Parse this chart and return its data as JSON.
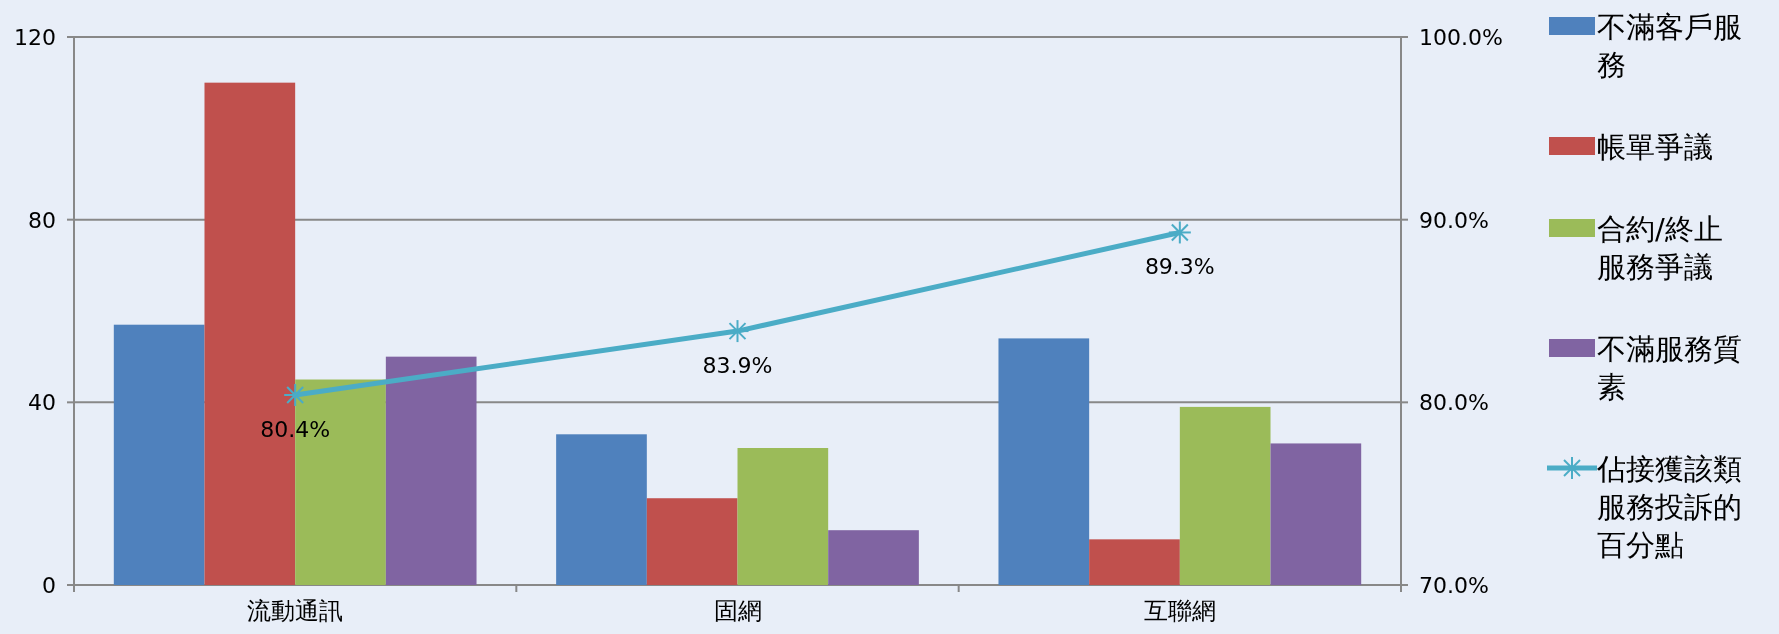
{
  "chart_data": {
    "type": "bar",
    "categories": [
      "流動通訊",
      "固網",
      "互聯網"
    ],
    "series": [
      {
        "name": "不滿客戶服務",
        "color": "#4f81bd",
        "values": [
          57,
          33,
          54
        ]
      },
      {
        "name": "帳單爭議",
        "color": "#c0504d",
        "values": [
          110,
          19,
          10
        ]
      },
      {
        "name": "合約/終止服務爭議",
        "color": "#9bbb59",
        "values": [
          45,
          30,
          39
        ]
      },
      {
        "name": "不滿服務質素",
        "color": "#8064a2",
        "values": [
          50,
          12,
          31
        ]
      },
      {
        "name": "佔接獲該類服務投訴的百分點",
        "type": "line",
        "axis": "y2",
        "color": "#4bacc6",
        "marker": "cross",
        "values": [
          80.4,
          83.9,
          89.3
        ],
        "value_labels": [
          "80.4%",
          "83.9%",
          "89.3%"
        ]
      }
    ],
    "ylim": [
      0,
      120
    ],
    "yticks": [
      0,
      40,
      80,
      120
    ],
    "y2lim": [
      70,
      100
    ],
    "y2ticks": [
      {
        "value": 70,
        "label": "70.0%"
      },
      {
        "value": 80,
        "label": "80.0%"
      },
      {
        "value": 90,
        "label": "90.0%"
      },
      {
        "value": 100,
        "label": "100.0%"
      }
    ],
    "grid": "y",
    "legend": "right"
  }
}
